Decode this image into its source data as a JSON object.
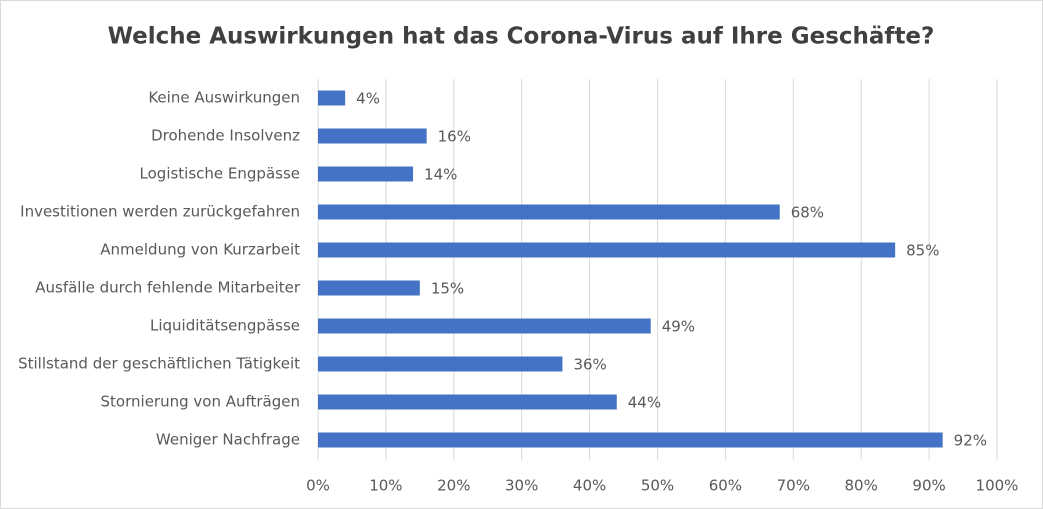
{
  "chart_data": {
    "type": "bar",
    "orientation": "horizontal",
    "title": "Welche Auswirkungen hat das Corona-Virus auf Ihre Geschäfte?",
    "categories": [
      "Keine Auswirkungen",
      "Drohende Insolvenz",
      "Logistische Engpässe",
      "Investitionen werden zurückgefahren",
      "Anmeldung von Kurzarbeit",
      "Ausfälle durch fehlende Mitarbeiter",
      "Liquiditätsengpässe",
      "Stillstand der geschäftlichen Tätigkeit",
      "Stornierung von Aufträgen",
      "Weniger Nachfrage"
    ],
    "values": [
      4,
      16,
      14,
      68,
      85,
      15,
      49,
      36,
      44,
      92
    ],
    "value_labels": [
      "4%",
      "16%",
      "14%",
      "68%",
      "85%",
      "15%",
      "49%",
      "36%",
      "44%",
      "92%"
    ],
    "color": "#4472c4",
    "xlim": [
      0,
      100
    ],
    "xticks": [
      {
        "value": 0,
        "label": "0%"
      },
      {
        "value": 10,
        "label": "10%"
      },
      {
        "value": 20,
        "label": "20%"
      },
      {
        "value": 30,
        "label": "30%"
      },
      {
        "value": 40,
        "label": "40%"
      },
      {
        "value": 50,
        "label": "50%"
      },
      {
        "value": 60,
        "label": "60%"
      },
      {
        "value": 70,
        "label": "70%"
      },
      {
        "value": 80,
        "label": "80%"
      },
      {
        "value": 90,
        "label": "90%"
      },
      {
        "value": 100,
        "label": "100%"
      }
    ],
    "grid": true
  }
}
